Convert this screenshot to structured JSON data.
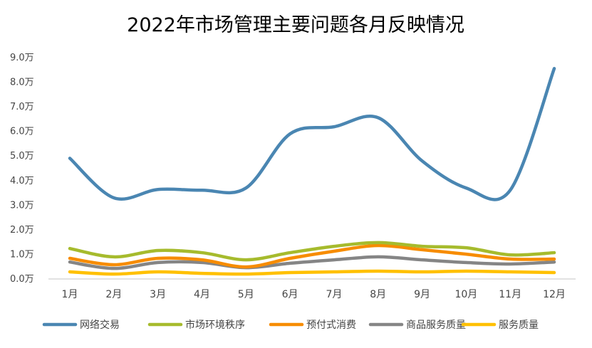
{
  "chart_data": {
    "type": "line",
    "title": "2022年市场管理主要问题各月反映情况",
    "xlabel": "",
    "ylabel": "",
    "categories": [
      "1月",
      "2月",
      "3月",
      "4月",
      "5月",
      "6月",
      "7月",
      "8月",
      "9月",
      "10月",
      "11月",
      "12月"
    ],
    "ylim": [
      0,
      9
    ],
    "yticks": [
      "0.0万",
      "1.0万",
      "2.0万",
      "3.0万",
      "4.0万",
      "5.0万",
      "6.0万",
      "7.0万",
      "8.0万",
      "9.0万"
    ],
    "unit": "万",
    "grid": false,
    "smooth": true,
    "legend_position": "bottom",
    "series": [
      {
        "name": "网络交易",
        "color": "#4a86b2",
        "values": [
          4.88,
          3.27,
          3.61,
          3.58,
          3.67,
          5.87,
          6.16,
          6.53,
          4.77,
          3.67,
          3.58,
          8.53
        ]
      },
      {
        "name": "市场环境秩序",
        "color": "#a6bb2d",
        "values": [
          1.21,
          0.87,
          1.13,
          1.04,
          0.75,
          1.04,
          1.3,
          1.45,
          1.3,
          1.24,
          0.95,
          1.04
        ]
      },
      {
        "name": "预付式消费",
        "color": "#f78c00",
        "values": [
          0.81,
          0.55,
          0.81,
          0.75,
          0.46,
          0.81,
          1.1,
          1.33,
          1.16,
          0.98,
          0.78,
          0.78
        ]
      },
      {
        "name": "商品服务质量",
        "color": "#858585",
        "values": [
          0.66,
          0.4,
          0.64,
          0.64,
          0.43,
          0.61,
          0.75,
          0.87,
          0.75,
          0.64,
          0.58,
          0.66
        ]
      },
      {
        "name": "服务质量",
        "color": "#ffc000",
        "values": [
          0.26,
          0.17,
          0.26,
          0.2,
          0.17,
          0.23,
          0.26,
          0.29,
          0.26,
          0.29,
          0.26,
          0.23
        ]
      }
    ]
  }
}
